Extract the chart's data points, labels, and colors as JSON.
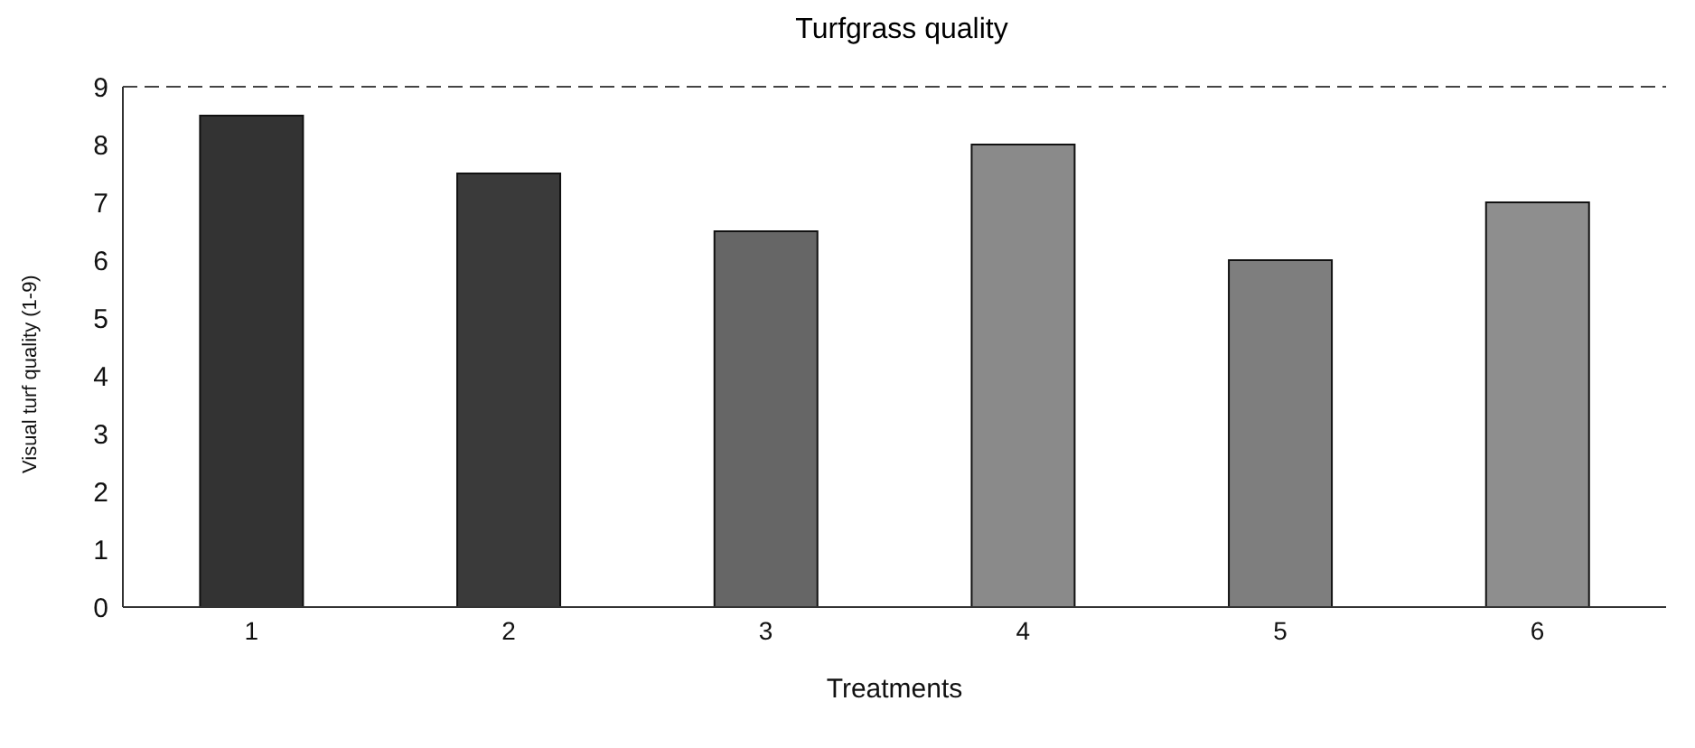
{
  "chart_data": {
    "type": "bar",
    "title": "Turfgrass quality",
    "xlabel": "Treatments",
    "ylabel": "Visual turf quality (1-9)",
    "categories": [
      "1",
      "2",
      "3",
      "4",
      "5",
      "6"
    ],
    "values": [
      8.5,
      7.5,
      6.5,
      8.0,
      6.0,
      7.0
    ],
    "colors": [
      "#333333",
      "#3a3a3a",
      "#666666",
      "#8a8a8a",
      "#7e7e7e",
      "#8e8e8e"
    ],
    "ylim": [
      0,
      9
    ],
    "yticks": [
      0,
      1,
      2,
      3,
      4,
      5,
      6,
      7,
      8,
      9
    ],
    "grid": false,
    "legend": false,
    "ref_lines": [
      {
        "axis": "y",
        "value": 9,
        "color": "#444444",
        "line_style": "dashed"
      }
    ]
  }
}
